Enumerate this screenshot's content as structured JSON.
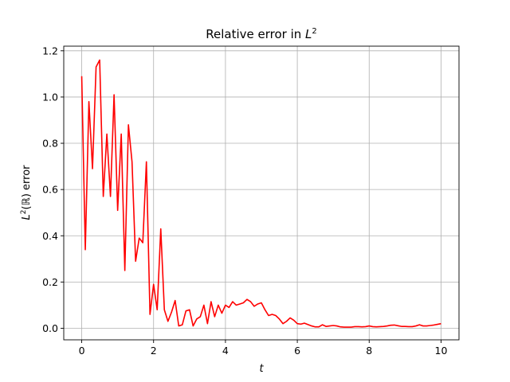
{
  "chart_data": {
    "type": "line",
    "title": "Relative error in L²",
    "xlabel": "t",
    "ylabel": "L²(ℝ) error",
    "xlim": [
      -0.5,
      10.5
    ],
    "ylim": [
      -0.05,
      1.22
    ],
    "xticks": [
      0,
      2,
      4,
      6,
      8,
      10
    ],
    "xtick_labels": [
      "0",
      "2",
      "4",
      "6",
      "8",
      "10"
    ],
    "yticks": [
      0.0,
      0.2,
      0.4,
      0.6,
      0.8,
      1.0,
      1.2
    ],
    "ytick_labels": [
      "0.0",
      "0.2",
      "0.4",
      "0.6",
      "0.8",
      "1.0",
      "1.2"
    ],
    "grid": true,
    "series": [
      {
        "color": "#ff0000",
        "x": [
          0.0,
          0.1,
          0.2,
          0.3,
          0.4,
          0.5,
          0.6,
          0.7,
          0.8,
          0.9,
          1.0,
          1.1,
          1.2,
          1.3,
          1.4,
          1.5,
          1.6,
          1.7,
          1.8,
          1.9,
          2.0,
          2.1,
          2.2,
          2.3,
          2.4,
          2.5,
          2.6,
          2.7,
          2.8,
          2.9,
          3.0,
          3.1,
          3.2,
          3.3,
          3.4,
          3.5,
          3.6,
          3.7,
          3.8,
          3.9,
          4.0,
          4.1,
          4.2,
          4.3,
          4.4,
          4.5,
          4.6,
          4.7,
          4.8,
          4.9,
          5.0,
          5.1,
          5.2,
          5.3,
          5.4,
          5.5,
          5.6,
          5.7,
          5.8,
          5.9,
          6.0,
          6.1,
          6.2,
          6.3,
          6.4,
          6.5,
          6.6,
          6.7,
          6.8,
          6.9,
          7.0,
          7.1,
          7.2,
          7.3,
          7.4,
          7.5,
          7.6,
          7.7,
          7.8,
          7.9,
          8.0,
          8.1,
          8.2,
          8.3,
          8.4,
          8.5,
          8.6,
          8.7,
          8.8,
          8.9,
          9.0,
          9.1,
          9.2,
          9.3,
          9.4,
          9.5,
          9.6,
          9.7,
          9.8,
          9.9,
          10.0
        ],
        "values": [
          1.09,
          0.34,
          0.98,
          0.69,
          1.13,
          1.16,
          0.57,
          0.84,
          0.57,
          1.01,
          0.51,
          0.84,
          0.25,
          0.88,
          0.72,
          0.29,
          0.39,
          0.37,
          0.72,
          0.06,
          0.19,
          0.08,
          0.43,
          0.08,
          0.03,
          0.07,
          0.12,
          0.01,
          0.015,
          0.075,
          0.08,
          0.01,
          0.04,
          0.05,
          0.1,
          0.02,
          0.115,
          0.05,
          0.1,
          0.065,
          0.1,
          0.09,
          0.115,
          0.1,
          0.105,
          0.11,
          0.125,
          0.115,
          0.095,
          0.105,
          0.11,
          0.08,
          0.055,
          0.06,
          0.055,
          0.04,
          0.02,
          0.03,
          0.045,
          0.035,
          0.02,
          0.018,
          0.022,
          0.016,
          0.01,
          0.006,
          0.006,
          0.015,
          0.008,
          0.01,
          0.012,
          0.01,
          0.006,
          0.005,
          0.005,
          0.005,
          0.007,
          0.007,
          0.006,
          0.007,
          0.01,
          0.007,
          0.006,
          0.007,
          0.008,
          0.01,
          0.013,
          0.014,
          0.011,
          0.008,
          0.008,
          0.007,
          0.007,
          0.01,
          0.015,
          0.01,
          0.01,
          0.012,
          0.014,
          0.017,
          0.02
        ]
      }
    ]
  }
}
